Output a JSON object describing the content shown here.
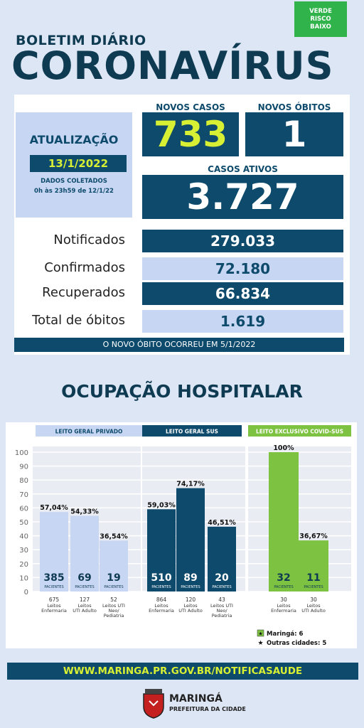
{
  "risk_badge": [
    "VERDE",
    "RISCO",
    "BAIXO"
  ],
  "header": {
    "subtitle": "BOLETIM DIÁRIO",
    "title": "CORONAVÍRUS"
  },
  "update": {
    "label": "ATUALIZAÇÃO",
    "date": "13/1/2022",
    "collected_label": "DADOS COLETADOS",
    "collected_range": "0h às 23h59 de 12/1/22"
  },
  "headline": {
    "new_cases_label": "NOVOS CASOS",
    "new_cases": "733",
    "new_deaths_label": "NOVOS ÓBITOS",
    "new_deaths": "1",
    "active_label": "CASOS ATIVOS",
    "active": "3.727"
  },
  "stats": [
    {
      "label": "Notificados",
      "value": "279.033"
    },
    {
      "label": "Confirmados",
      "value": "72.180"
    },
    {
      "label": "Recuperados",
      "value": "66.834"
    },
    {
      "label": "Total de óbitos",
      "value": "1.619"
    }
  ],
  "note": "O NOVO ÓBITO OCORREU EM 5/1/2022",
  "occupancy_title": "OCUPAÇÃO HOSPITALAR",
  "chart_data": {
    "type": "bar",
    "ylim": [
      0,
      100
    ],
    "yticks": [
      0,
      10,
      20,
      30,
      40,
      50,
      60,
      70,
      80,
      90,
      100
    ],
    "groups": [
      {
        "name": "LEITO GERAL PRIVADO",
        "bars": [
          {
            "pct_label": "57,04%",
            "value": 57.04,
            "patients": "385",
            "beds": "675",
            "bed_type": [
              "Leitos",
              "Enfermaria"
            ]
          },
          {
            "pct_label": "54,33%",
            "value": 54.33,
            "patients": "69",
            "beds": "127",
            "bed_type": [
              "Leitos",
              "UTI Adulto"
            ]
          },
          {
            "pct_label": "36,54%",
            "value": 36.54,
            "patients": "19",
            "beds": "52",
            "bed_type": [
              "Leitos UTI",
              "Neo/",
              "Pediatria"
            ]
          }
        ]
      },
      {
        "name": "LEITO GERAL SUS",
        "bars": [
          {
            "pct_label": "59,03%",
            "value": 59.03,
            "patients": "510",
            "beds": "864",
            "bed_type": [
              "Leitos",
              "Enfermaria"
            ]
          },
          {
            "pct_label": "74,17%",
            "value": 74.17,
            "patients": "89",
            "beds": "120",
            "bed_type": [
              "Leitos",
              "UTI Adulto"
            ]
          },
          {
            "pct_label": "46,51%",
            "value": 46.51,
            "patients": "20",
            "beds": "43",
            "bed_type": [
              "Leitos UTI",
              "Neo/",
              "Pediatria"
            ]
          }
        ]
      },
      {
        "name": "LEITO EXCLUSIVO COVID-SUS",
        "bars": [
          {
            "pct_label": "100%",
            "value": 100,
            "patients": "32",
            "beds": "30",
            "bed_type": [
              "Leitos",
              "Enfermaria"
            ]
          },
          {
            "pct_label": "36,67%",
            "value": 36.67,
            "patients": "11",
            "beds": "30",
            "bed_type": [
              "Leitos",
              "UTI Adulto"
            ]
          }
        ]
      }
    ],
    "patients_word": "PACIENTES",
    "legend": [
      "Maringá: 6",
      "Outras cidades: 5"
    ],
    "colors": {
      "privado": "#c7d6f3",
      "sus": "#0e4a6b",
      "covid": "#7ec242"
    }
  },
  "footer_url": "WWW.MARINGA.PR.GOV.BR/NOTIFICASAUDE",
  "logo": {
    "name": "MARINGÁ",
    "subtitle": "PREFEITURA DA CIDADE"
  }
}
